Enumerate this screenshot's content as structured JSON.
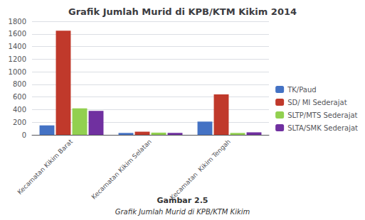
{
  "chart_data": {
    "type": "bar",
    "title": "Grafik Jumlah Murid di KPB/KTM Kikim 2014",
    "categories": [
      "Kecamatan Kikim Barat",
      "Kecamatan Kikim Selatan",
      "Kecamatan  Kikim Tengah"
    ],
    "series": [
      {
        "name": "TK/Paud",
        "color": "#4472c4",
        "values": [
          150,
          30,
          210
        ]
      },
      {
        "name": "SD/ MI Sederajat",
        "color": "#c0392b",
        "values": [
          1650,
          50,
          640
        ]
      },
      {
        "name": "SLTP/MTS Sederajat",
        "color": "#92d050",
        "values": [
          420,
          35,
          30
        ]
      },
      {
        "name": "SLTA/SMK Sederajat",
        "color": "#7030a0",
        "values": [
          380,
          30,
          40
        ]
      }
    ],
    "ylim": [
      0,
      1800
    ],
    "yticks": [
      0,
      200,
      400,
      600,
      800,
      1000,
      1200,
      1400,
      1600,
      1800
    ],
    "grid": true,
    "legend": "lower right",
    "annotations": [
      "Gambar 2.5",
      "Grafik Jumlah Murid di KPB/KTM Kikim"
    ]
  }
}
